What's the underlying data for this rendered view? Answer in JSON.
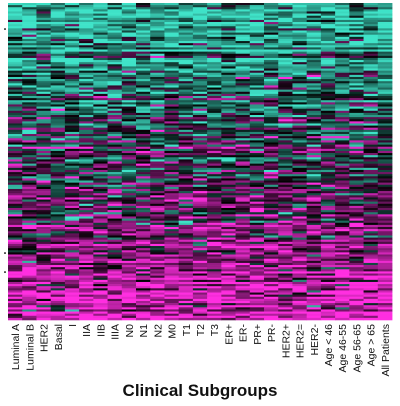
{
  "chart_data": {
    "type": "heatmap",
    "title": "",
    "xlabel": "Clinical Subgroups",
    "ylabel": "",
    "columns": [
      "Luminal A",
      "Luminal B",
      "HER2",
      "Basal",
      "I",
      "IIA",
      "IIB",
      "IIIA",
      "N0",
      "N1",
      "N2",
      "M0",
      "T1",
      "T2",
      "T3",
      "ER+",
      "ER-",
      "PR+",
      "PR-",
      "HER2+",
      "HER2=",
      "HER2-",
      "Age < 46",
      "Age 46-55",
      "Age 56-65",
      "Age > 65",
      "All Patients"
    ],
    "n_rows": 150,
    "value_range": [
      -1,
      1
    ],
    "colorscale": {
      "low": "#3fe3c8",
      "mid": "#000000",
      "high": "#ff2ee0"
    },
    "trend": "rows ordered from predominantly low values (cyan) at the top to predominantly high values (magenta) at the bottom",
    "row_markers": 4,
    "grid": false,
    "legend": "none"
  }
}
